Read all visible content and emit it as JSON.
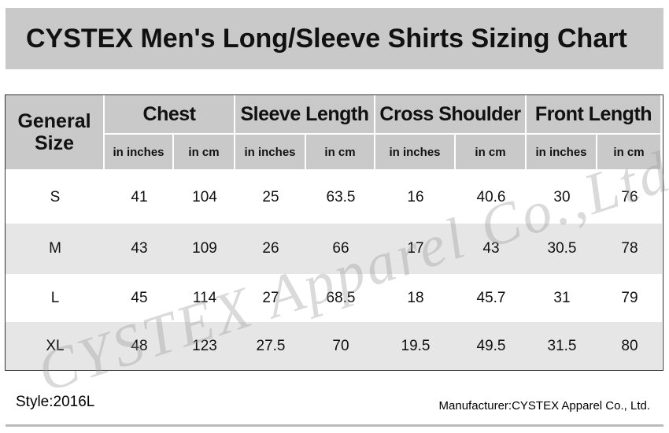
{
  "header": {
    "title": "CYSTEX Men's Long/Sleeve Shirts Sizing Chart"
  },
  "table": {
    "corner": "General Size",
    "columns": [
      {
        "group": "Chest",
        "units": [
          "in inches",
          "in cm"
        ]
      },
      {
        "group": "Sleeve Length",
        "units": [
          "in inches",
          "in cm"
        ]
      },
      {
        "group": "Cross Shoulder",
        "units": [
          "in inches",
          "in cm"
        ]
      },
      {
        "group": "Front Length",
        "units": [
          "in inches",
          "in cm"
        ]
      }
    ],
    "rows": [
      {
        "size": "S",
        "values": [
          41,
          104,
          25,
          63.5,
          16,
          40.6,
          30,
          76
        ]
      },
      {
        "size": "M",
        "values": [
          43,
          109,
          26,
          66,
          17,
          43,
          30.5,
          78
        ]
      },
      {
        "size": "L",
        "values": [
          45,
          114,
          27,
          68.5,
          18,
          45.7,
          31,
          79
        ]
      },
      {
        "size": "XL",
        "values": [
          48,
          123,
          27.5,
          70,
          19.5,
          49.5,
          31.5,
          80
        ]
      }
    ]
  },
  "watermark": "CYSTEX Apparel Co.,Ltd.",
  "footer": {
    "style": "Style:2016L",
    "manufacturer": "Manufacturer:CYSTEX Apparel Co., Ltd."
  }
}
